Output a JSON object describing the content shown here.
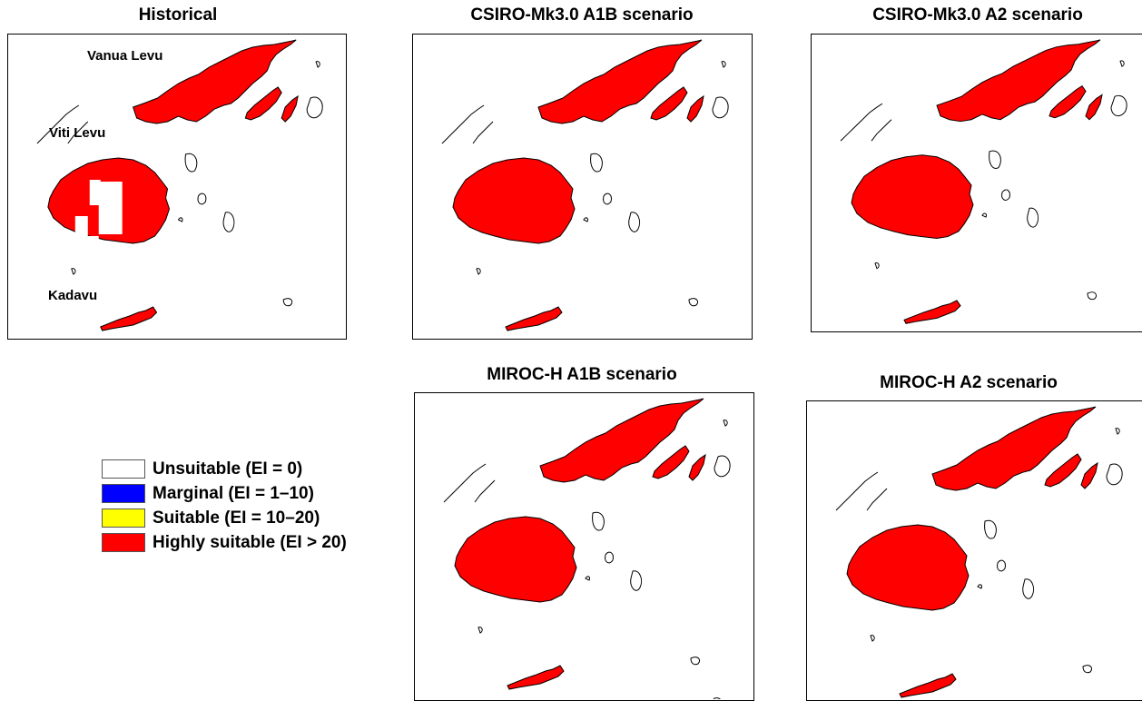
{
  "panels": [
    {
      "id": "historical",
      "title": "Historical"
    },
    {
      "id": "csiro-a1b",
      "title": "CSIRO-Mk3.0 A1B scenario"
    },
    {
      "id": "csiro-a2",
      "title": "CSIRO-Mk3.0 A2 scenario"
    },
    {
      "id": "miroc-a1b",
      "title": "MIROC-H A1B scenario"
    },
    {
      "id": "miroc-a2",
      "title": "MIROC-H A2 scenario"
    }
  ],
  "island_labels": {
    "vanua_levu": "Vanua Levu",
    "viti_levu": "Viti Levu",
    "kadavu": "Kadavu"
  },
  "legend": [
    {
      "label": "Unsuitable (EI = 0)",
      "color": "#ffffff"
    },
    {
      "label": "Marginal (EI = 1–10)",
      "color": "#0000ff"
    },
    {
      "label": "Suitable (EI = 10–20)",
      "color": "#ffff00"
    },
    {
      "label": "Highly suitable (EI > 20)",
      "color": "#ff0000"
    }
  ]
}
